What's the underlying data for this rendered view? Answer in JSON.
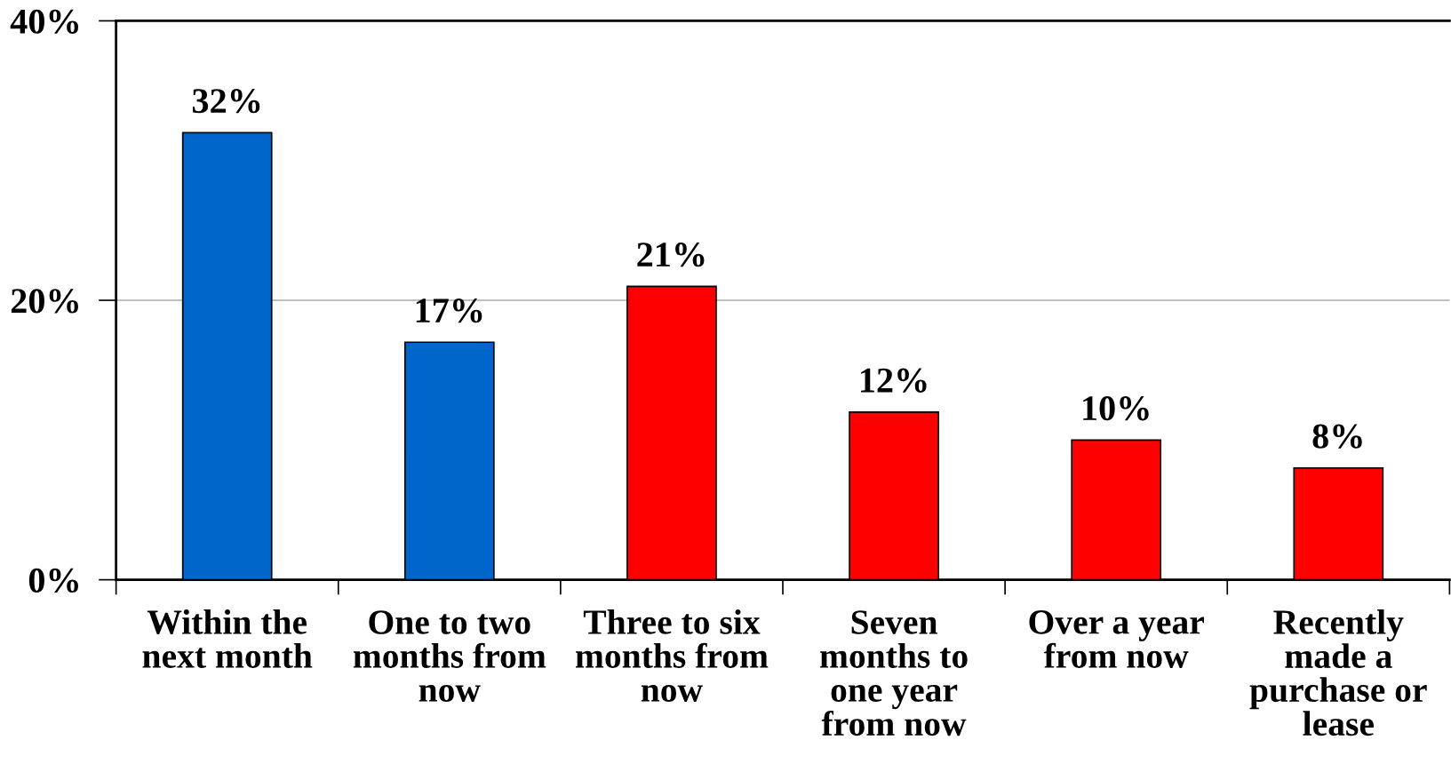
{
  "chart_data": {
    "type": "bar",
    "categories": [
      "Within the\nnext month",
      "One to two\nmonths from\nnow",
      "Three to six\nmonths from\nnow",
      "Seven\nmonths to\none year\nfrom now",
      "Over a year\nfrom now",
      "Recently\nmade a\npurchase or\nlease"
    ],
    "values": [
      32,
      17,
      21,
      12,
      10,
      8
    ],
    "colors": [
      "#0066cc",
      "#0066cc",
      "#ff0000",
      "#ff0000",
      "#ff0000",
      "#ff0000"
    ],
    "value_labels": [
      "32%",
      "17%",
      "21%",
      "12%",
      "10%",
      "8%"
    ],
    "ylim": [
      0,
      40
    ],
    "yticks": [
      {
        "value": 0,
        "label": "0%"
      },
      {
        "value": 20,
        "label": "20%"
      },
      {
        "value": 40,
        "label": "40%"
      }
    ],
    "grid": "y",
    "legend": false
  }
}
